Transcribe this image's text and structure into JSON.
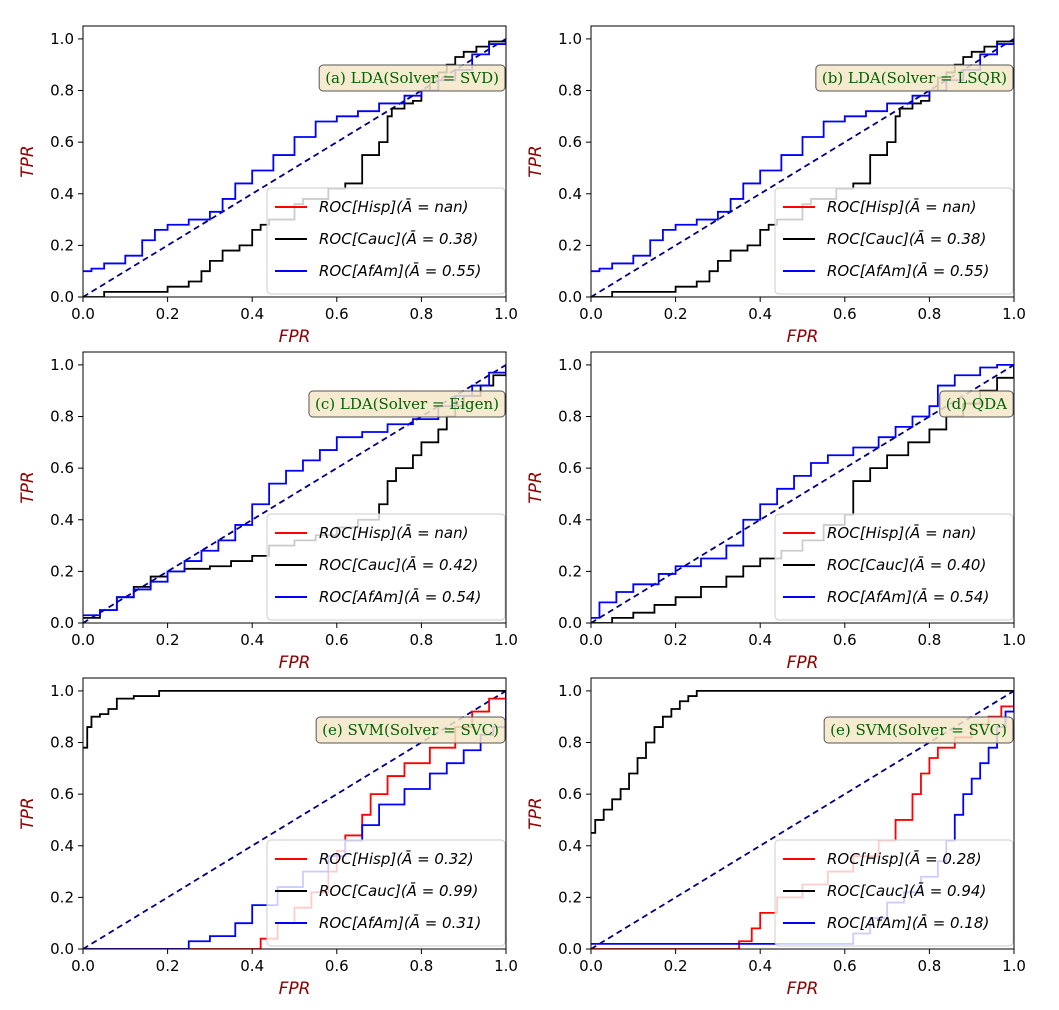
{
  "style": {
    "label_color": "#8b0000",
    "annotation_color": "#006400",
    "annotation_bg": "#f5e6c8",
    "series_colors": {
      "Hisp": "#ff0000",
      "Cauc": "#000000",
      "AfAm": "#0000ff"
    },
    "diagonal_color": "#000080"
  },
  "chart_data": [
    {
      "type": "line",
      "annotation": "(a) LDA(Solver = SVD)",
      "xlabel": "FPR",
      "ylabel": "TPR",
      "xlim": [
        0,
        1.0
      ],
      "ylim": [
        0,
        1.05
      ],
      "xticks": [
        "0.0",
        "0.2",
        "0.4",
        "0.6",
        "0.8",
        "1.0"
      ],
      "yticks": [
        "0.0",
        "0.2",
        "0.4",
        "0.6",
        "0.8",
        "1.0"
      ],
      "legend_position": "lower right",
      "diagonal": true,
      "series": [
        {
          "name": "ROC[Hisp](Ā = nan)",
          "color_key": "Hisp",
          "x": [],
          "y": []
        },
        {
          "name": "ROC[Cauc](Ā = 0.38)",
          "color_key": "Cauc",
          "x": [
            0,
            0.05,
            0.2,
            0.25,
            0.28,
            0.3,
            0.33,
            0.37,
            0.4,
            0.42,
            0.44,
            0.5,
            0.52,
            0.58,
            0.62,
            0.66,
            0.7,
            0.72,
            0.73,
            0.76,
            0.78,
            0.8,
            0.82,
            0.84,
            0.86,
            0.88,
            0.9,
            0.93,
            0.96,
            1.0
          ],
          "y": [
            0,
            0.02,
            0.04,
            0.06,
            0.1,
            0.14,
            0.18,
            0.2,
            0.26,
            0.28,
            0.3,
            0.36,
            0.38,
            0.42,
            0.44,
            0.55,
            0.6,
            0.7,
            0.73,
            0.75,
            0.76,
            0.8,
            0.85,
            0.87,
            0.9,
            0.93,
            0.95,
            0.97,
            0.99,
            1.0
          ]
        },
        {
          "name": "ROC[AfAm](Ā = 0.55)",
          "color_key": "AfAm",
          "x": [
            0,
            0.02,
            0.05,
            0.1,
            0.14,
            0.17,
            0.2,
            0.25,
            0.3,
            0.33,
            0.36,
            0.4,
            0.45,
            0.5,
            0.55,
            0.6,
            0.65,
            0.7,
            0.76,
            0.8,
            0.84,
            0.88,
            0.92,
            0.96,
            1.0
          ],
          "y": [
            0.1,
            0.11,
            0.13,
            0.16,
            0.22,
            0.26,
            0.28,
            0.3,
            0.33,
            0.38,
            0.44,
            0.49,
            0.55,
            0.62,
            0.68,
            0.7,
            0.72,
            0.75,
            0.78,
            0.8,
            0.84,
            0.88,
            0.94,
            0.98,
            1.0
          ]
        }
      ]
    },
    {
      "type": "line",
      "annotation": "(b) LDA(Solver = LSQR)",
      "xlabel": "FPR",
      "ylabel": "TPR",
      "xlim": [
        0,
        1.0
      ],
      "ylim": [
        0,
        1.05
      ],
      "xticks": [
        "0.0",
        "0.2",
        "0.4",
        "0.6",
        "0.8",
        "1.0"
      ],
      "yticks": [
        "0.0",
        "0.2",
        "0.4",
        "0.6",
        "0.8",
        "1.0"
      ],
      "legend_position": "lower right",
      "diagonal": true,
      "series": [
        {
          "name": "ROC[Hisp](Ā = nan)",
          "color_key": "Hisp",
          "x": [],
          "y": []
        },
        {
          "name": "ROC[Cauc](Ā = 0.38)",
          "color_key": "Cauc",
          "x": [
            0,
            0.05,
            0.2,
            0.25,
            0.28,
            0.3,
            0.33,
            0.37,
            0.4,
            0.42,
            0.44,
            0.5,
            0.52,
            0.58,
            0.62,
            0.66,
            0.7,
            0.72,
            0.73,
            0.76,
            0.78,
            0.8,
            0.82,
            0.84,
            0.86,
            0.88,
            0.9,
            0.93,
            0.96,
            1.0
          ],
          "y": [
            0,
            0.02,
            0.04,
            0.06,
            0.1,
            0.14,
            0.18,
            0.2,
            0.26,
            0.28,
            0.3,
            0.36,
            0.38,
            0.42,
            0.44,
            0.55,
            0.6,
            0.7,
            0.73,
            0.75,
            0.76,
            0.8,
            0.85,
            0.87,
            0.9,
            0.93,
            0.95,
            0.97,
            0.99,
            1.0
          ]
        },
        {
          "name": "ROC[AfAm](Ā = 0.55)",
          "color_key": "AfAm",
          "x": [
            0,
            0.02,
            0.05,
            0.1,
            0.14,
            0.17,
            0.2,
            0.25,
            0.3,
            0.33,
            0.36,
            0.4,
            0.45,
            0.5,
            0.55,
            0.6,
            0.65,
            0.7,
            0.76,
            0.8,
            0.84,
            0.88,
            0.92,
            0.96,
            1.0
          ],
          "y": [
            0.1,
            0.11,
            0.13,
            0.16,
            0.22,
            0.26,
            0.28,
            0.3,
            0.33,
            0.38,
            0.44,
            0.49,
            0.55,
            0.62,
            0.68,
            0.7,
            0.72,
            0.75,
            0.78,
            0.8,
            0.84,
            0.88,
            0.94,
            0.98,
            1.0
          ]
        }
      ]
    },
    {
      "type": "line",
      "annotation": "(c) LDA(Solver = Eigen)",
      "xlabel": "FPR",
      "ylabel": "TPR",
      "xlim": [
        0,
        1.0
      ],
      "ylim": [
        0,
        1.05
      ],
      "xticks": [
        "0.0",
        "0.2",
        "0.4",
        "0.6",
        "0.8",
        "1.0"
      ],
      "yticks": [
        "0.0",
        "0.2",
        "0.4",
        "0.6",
        "0.8",
        "1.0"
      ],
      "legend_position": "lower right",
      "diagonal": true,
      "series": [
        {
          "name": "ROC[Hisp](Ā = nan)",
          "color_key": "Hisp",
          "x": [],
          "y": []
        },
        {
          "name": "ROC[Cauc](Ā = 0.42)",
          "color_key": "Cauc",
          "x": [
            0,
            0.04,
            0.08,
            0.12,
            0.16,
            0.2,
            0.24,
            0.3,
            0.35,
            0.4,
            0.44,
            0.5,
            0.55,
            0.6,
            0.65,
            0.7,
            0.72,
            0.74,
            0.78,
            0.8,
            0.84,
            0.86,
            0.88,
            0.9,
            0.94,
            0.97,
            1.0
          ],
          "y": [
            0.02,
            0.05,
            0.1,
            0.14,
            0.18,
            0.2,
            0.21,
            0.22,
            0.24,
            0.26,
            0.3,
            0.32,
            0.34,
            0.37,
            0.4,
            0.46,
            0.55,
            0.6,
            0.65,
            0.7,
            0.75,
            0.8,
            0.84,
            0.88,
            0.92,
            0.96,
            1.0
          ]
        },
        {
          "name": "ROC[AfAm](Ā = 0.54)",
          "color_key": "AfAm",
          "x": [
            0,
            0.04,
            0.08,
            0.12,
            0.16,
            0.2,
            0.24,
            0.28,
            0.32,
            0.36,
            0.4,
            0.44,
            0.48,
            0.52,
            0.56,
            0.6,
            0.66,
            0.72,
            0.78,
            0.84,
            0.88,
            0.92,
            0.96,
            1.0
          ],
          "y": [
            0.03,
            0.05,
            0.1,
            0.13,
            0.16,
            0.2,
            0.24,
            0.28,
            0.32,
            0.38,
            0.46,
            0.54,
            0.59,
            0.63,
            0.67,
            0.72,
            0.74,
            0.77,
            0.79,
            0.84,
            0.88,
            0.92,
            0.97,
            1.0
          ]
        }
      ]
    },
    {
      "type": "line",
      "annotation": "(d) QDA",
      "xlabel": "FPR",
      "ylabel": "TPR",
      "xlim": [
        0,
        1.0
      ],
      "ylim": [
        0,
        1.05
      ],
      "xticks": [
        "0.0",
        "0.2",
        "0.4",
        "0.6",
        "0.8",
        "1.0"
      ],
      "yticks": [
        "0.0",
        "0.2",
        "0.4",
        "0.6",
        "0.8",
        "1.0"
      ],
      "legend_position": "lower right",
      "diagonal": true,
      "series": [
        {
          "name": "ROC[Hisp](Ā = nan)",
          "color_key": "Hisp",
          "x": [],
          "y": []
        },
        {
          "name": "ROC[Cauc](Ā = 0.40)",
          "color_key": "Cauc",
          "x": [
            0,
            0.05,
            0.1,
            0.15,
            0.2,
            0.26,
            0.32,
            0.36,
            0.4,
            0.45,
            0.5,
            0.55,
            0.6,
            0.62,
            0.66,
            0.7,
            0.75,
            0.8,
            0.84,
            0.88,
            0.92,
            0.96,
            1.0
          ],
          "y": [
            0,
            0.02,
            0.04,
            0.07,
            0.1,
            0.14,
            0.18,
            0.22,
            0.25,
            0.28,
            0.32,
            0.38,
            0.42,
            0.55,
            0.6,
            0.65,
            0.7,
            0.75,
            0.8,
            0.85,
            0.9,
            0.95,
            1.0
          ]
        },
        {
          "name": "ROC[AfAm](Ā = 0.54)",
          "color_key": "AfAm",
          "x": [
            0,
            0.02,
            0.06,
            0.1,
            0.16,
            0.2,
            0.26,
            0.32,
            0.36,
            0.4,
            0.44,
            0.48,
            0.52,
            0.56,
            0.62,
            0.68,
            0.72,
            0.76,
            0.8,
            0.82,
            0.86,
            0.92,
            0.96,
            1.0
          ],
          "y": [
            0.02,
            0.08,
            0.12,
            0.15,
            0.19,
            0.22,
            0.25,
            0.3,
            0.4,
            0.46,
            0.52,
            0.57,
            0.62,
            0.65,
            0.68,
            0.72,
            0.76,
            0.8,
            0.84,
            0.92,
            0.96,
            0.99,
            1.0,
            1.0
          ]
        }
      ]
    },
    {
      "type": "line",
      "annotation": "(e) SVM(Solver = SVC)",
      "xlabel": "FPR",
      "ylabel": "TPR",
      "xlim": [
        0,
        1.0
      ],
      "ylim": [
        0,
        1.05
      ],
      "xticks": [
        "0.0",
        "0.2",
        "0.4",
        "0.6",
        "0.8",
        "1.0"
      ],
      "yticks": [
        "0.0",
        "0.2",
        "0.4",
        "0.6",
        "0.8",
        "1.0"
      ],
      "legend_position": "lower right",
      "diagonal": true,
      "series": [
        {
          "name": "ROC[Hisp](Ā = 0.32)",
          "color_key": "Hisp",
          "x": [
            0,
            0.37,
            0.42,
            0.46,
            0.5,
            0.54,
            0.58,
            0.6,
            0.62,
            0.66,
            0.68,
            0.72,
            0.76,
            0.82,
            0.88,
            0.92,
            0.96,
            1.0
          ],
          "y": [
            0,
            0,
            0.04,
            0.1,
            0.16,
            0.22,
            0.3,
            0.38,
            0.44,
            0.52,
            0.6,
            0.67,
            0.72,
            0.78,
            0.86,
            0.92,
            0.97,
            1.0
          ]
        },
        {
          "name": "ROC[Cauc](Ā = 0.99)",
          "color_key": "Cauc",
          "x": [
            0,
            0.01,
            0.02,
            0.04,
            0.06,
            0.08,
            0.12,
            0.18,
            0.25,
            1.0
          ],
          "y": [
            0.78,
            0.86,
            0.9,
            0.91,
            0.93,
            0.97,
            0.98,
            1.0,
            1.0,
            1.0
          ]
        },
        {
          "name": "ROC[AfAm](Ā = 0.31)",
          "color_key": "AfAm",
          "x": [
            0,
            0.2,
            0.25,
            0.3,
            0.36,
            0.4,
            0.46,
            0.52,
            0.58,
            0.62,
            0.66,
            0.7,
            0.76,
            0.82,
            0.86,
            0.9,
            0.94,
            0.97,
            1.0
          ],
          "y": [
            0,
            0,
            0.03,
            0.05,
            0.1,
            0.17,
            0.24,
            0.3,
            0.36,
            0.42,
            0.48,
            0.56,
            0.62,
            0.68,
            0.72,
            0.77,
            0.83,
            0.86,
            1.0
          ]
        }
      ]
    },
    {
      "type": "line",
      "annotation": "(e) SVM(Solver = SVC)",
      "xlabel": "FPR",
      "ylabel": "TPR",
      "xlim": [
        0,
        1.0
      ],
      "ylim": [
        0,
        1.05
      ],
      "xticks": [
        "0.0",
        "0.2",
        "0.4",
        "0.6",
        "0.8",
        "1.0"
      ],
      "yticks": [
        "0.0",
        "0.2",
        "0.4",
        "0.6",
        "0.8",
        "1.0"
      ],
      "legend_position": "lower right",
      "diagonal": true,
      "series": [
        {
          "name": "ROC[Hisp](Ā = 0.28)",
          "color_key": "Hisp",
          "x": [
            0,
            0.35,
            0.38,
            0.4,
            0.44,
            0.5,
            0.56,
            0.62,
            0.68,
            0.72,
            0.76,
            0.78,
            0.8,
            0.82,
            0.86,
            0.9,
            0.94,
            0.97,
            1.0
          ],
          "y": [
            0,
            0.03,
            0.08,
            0.14,
            0.2,
            0.25,
            0.3,
            0.36,
            0.42,
            0.5,
            0.6,
            0.68,
            0.74,
            0.78,
            0.82,
            0.87,
            0.9,
            0.94,
            1.0
          ]
        },
        {
          "name": "ROC[Cauc](Ā = 0.94)",
          "color_key": "Cauc",
          "x": [
            0,
            0.01,
            0.03,
            0.05,
            0.07,
            0.09,
            0.11,
            0.13,
            0.15,
            0.17,
            0.19,
            0.21,
            0.23,
            0.25,
            1.0
          ],
          "y": [
            0.45,
            0.5,
            0.54,
            0.58,
            0.62,
            0.68,
            0.74,
            0.8,
            0.86,
            0.9,
            0.93,
            0.96,
            0.98,
            1.0,
            1.0
          ]
        },
        {
          "name": "ROC[AfAm](Ā = 0.18)",
          "color_key": "AfAm",
          "x": [
            0,
            0.58,
            0.62,
            0.66,
            0.7,
            0.74,
            0.78,
            0.82,
            0.84,
            0.86,
            0.88,
            0.9,
            0.92,
            0.94,
            0.96,
            0.98,
            1.0
          ],
          "y": [
            0.02,
            0.02,
            0.06,
            0.12,
            0.18,
            0.22,
            0.28,
            0.34,
            0.42,
            0.52,
            0.6,
            0.66,
            0.72,
            0.78,
            0.86,
            0.92,
            1.0
          ]
        }
      ]
    }
  ]
}
